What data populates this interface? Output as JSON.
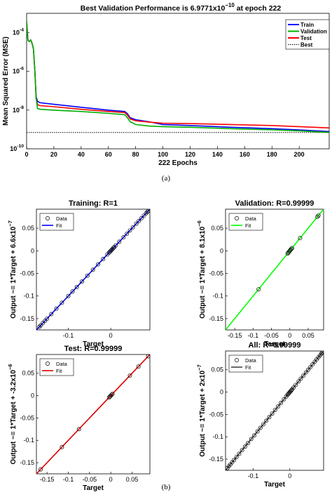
{
  "figure": {
    "caption_a": "(a)",
    "caption_b": "(b)"
  },
  "chart_data": [
    {
      "type": "line",
      "title": "Best Validation Performance is 6.9771x10",
      "title_exp": "−10",
      "title_suffix": " at epoch 222",
      "xlabel": "222 Epochs",
      "ylabel": "Mean Squared Error  (MSE)",
      "yscale": "log",
      "xlim": [
        0,
        222
      ],
      "ylim": [
        1e-10,
        0.001
      ],
      "xticks": [
        0,
        20,
        40,
        60,
        80,
        100,
        120,
        140,
        160,
        180,
        200
      ],
      "yticks": [
        {
          "base": "10",
          "exp": "-4",
          "value": 0.0001
        },
        {
          "base": "10",
          "exp": "-6",
          "value": 1e-06
        },
        {
          "base": "10",
          "exp": "-8",
          "value": 1e-08
        },
        {
          "base": "10",
          "exp": "-10",
          "value": 1e-10
        }
      ],
      "grid": false,
      "legend_position": "top-right",
      "series": [
        {
          "name": "Train",
          "color": "#0000ff",
          "style": "solid",
          "x": [
            0,
            1,
            2,
            3,
            4,
            5,
            6,
            7,
            8,
            10,
            20,
            40,
            60,
            72,
            74,
            76,
            80,
            90,
            100,
            120,
            150,
            180,
            200,
            222
          ],
          "y": [
            0.0004,
            4e-05,
            3.5e-05,
            4.2e-05,
            2.8e-05,
            1.5e-05,
            1.2e-06,
            5e-08,
            2.8e-08,
            2.4e-08,
            2e-08,
            1.4e-08,
            1e-08,
            8.5e-09,
            6.5e-09,
            4e-09,
            3.2e-09,
            2.5e-09,
            1.8e-09,
            1.6e-09,
            1.3e-09,
            1.1e-09,
            9.5e-10,
            7.8e-10
          ]
        },
        {
          "name": "Validation",
          "color": "#00b000",
          "style": "solid",
          "x": [
            0,
            1,
            2,
            3,
            4,
            5,
            6,
            7,
            8,
            10,
            20,
            40,
            60,
            72,
            74,
            76,
            80,
            90,
            100,
            120,
            150,
            180,
            200,
            222
          ],
          "y": [
            0.0004,
            4e-05,
            3.5e-05,
            4.2e-05,
            2.8e-05,
            1.5e-05,
            1.2e-06,
            4e-08,
            1.2e-08,
            1.1e-08,
            1e-08,
            8.5e-09,
            6.8e-09,
            5.8e-09,
            4e-09,
            2.5e-09,
            1.8e-09,
            1.5e-09,
            1.4e-09,
            1.3e-09,
            1.1e-09,
            9.5e-10,
            8.5e-10,
            7e-10
          ]
        },
        {
          "name": "Test",
          "color": "#ff0000",
          "style": "solid",
          "x": [
            0,
            1,
            2,
            3,
            4,
            5,
            6,
            7,
            8,
            10,
            20,
            40,
            60,
            72,
            74,
            76,
            80,
            90,
            100,
            120,
            150,
            180,
            200,
            222
          ],
          "y": [
            0.0004,
            4e-05,
            3.5e-05,
            4.2e-05,
            2.8e-05,
            1.5e-05,
            1.2e-06,
            4e-08,
            1.9e-08,
            1.7e-08,
            1.5e-08,
            1.1e-08,
            8.5e-09,
            7.5e-09,
            5.5e-09,
            3.5e-09,
            2.8e-09,
            2.4e-09,
            2.1e-09,
            2e-09,
            1.8e-09,
            1.6e-09,
            1.4e-09,
            1.2e-09
          ]
        },
        {
          "name": "Best",
          "color": "#000000",
          "style": "dotted",
          "x": [
            0,
            222
          ],
          "y": [
            6.9771e-10,
            6.9771e-10
          ]
        }
      ]
    },
    {
      "type": "scatter",
      "title": "Training: R=1",
      "xlabel": "Target",
      "ylabel": "Output ~= 1*Target + 6.6x10",
      "ylabel_exp": "−7",
      "xlim": [
        -0.175,
        0.092
      ],
      "ylim": [
        -0.175,
        0.092
      ],
      "xticks": [
        {
          "label": "-0.1",
          "value": -0.1
        },
        {
          "label": "0",
          "value": 0
        }
      ],
      "yticks": [
        {
          "label": "0.05",
          "value": 0.05
        },
        {
          "label": "0",
          "value": 0
        },
        {
          "label": "-0.05",
          "value": -0.05
        },
        {
          "label": "-0.1",
          "value": -0.1
        },
        {
          "label": "-0.15",
          "value": -0.15
        }
      ],
      "fit_color": "#0000ff",
      "fit": {
        "slope": 1,
        "intercept": 6.6e-07
      },
      "legend": [
        "Data",
        "Fit"
      ],
      "legend_position": "top-left",
      "points_x": [
        -0.168,
        -0.165,
        -0.16,
        -0.155,
        -0.15,
        -0.14,
        -0.128,
        -0.115,
        -0.1,
        -0.09,
        -0.08,
        -0.068,
        -0.055,
        -0.042,
        -0.03,
        -0.018,
        -0.008,
        -0.004,
        -0.002,
        0,
        0.002,
        0.004,
        0.006,
        0.008,
        0.012,
        0.02,
        0.03,
        0.038,
        0.045,
        0.052,
        0.06,
        0.066,
        0.072,
        0.078,
        0.083,
        0.086,
        0.088
      ]
    },
    {
      "type": "scatter",
      "title": "Validation: R=0.99999",
      "xlabel": "Target",
      "ylabel": "Output ~= 1*Target + 8.1x10",
      "ylabel_exp": "−6",
      "xlim": [
        -0.175,
        0.092
      ],
      "ylim": [
        -0.175,
        0.092
      ],
      "xticks": [
        {
          "label": "-0.15",
          "value": -0.15
        },
        {
          "label": "-0.1",
          "value": -0.1
        },
        {
          "label": "-0.05",
          "value": -0.05
        },
        {
          "label": "0",
          "value": 0
        },
        {
          "label": "0.05",
          "value": 0.05
        }
      ],
      "yticks": [
        {
          "label": "0.05",
          "value": 0.05
        },
        {
          "label": "0",
          "value": 0
        },
        {
          "label": "-0.05",
          "value": -0.05
        },
        {
          "label": "-0.1",
          "value": -0.1
        },
        {
          "label": "-0.15",
          "value": -0.15
        }
      ],
      "fit_color": "#00ff00",
      "fit": {
        "slope": 1,
        "intercept": 8.1e-06
      },
      "legend": [
        "Data",
        "Fit"
      ],
      "legend_position": "top-left",
      "points_x": [
        -0.085,
        -0.006,
        -0.004,
        -0.002,
        0,
        0.002,
        0.004,
        0.006,
        0.028,
        0.075,
        0.078
      ]
    },
    {
      "type": "scatter",
      "title": "Test: R=0.99999",
      "xlabel": "Target",
      "ylabel": "Output ~= 1*Target + -3.2x10",
      "ylabel_exp": "−6",
      "xlim": [
        -0.175,
        0.092
      ],
      "ylim": [
        -0.175,
        0.092
      ],
      "xticks": [
        {
          "label": "-0.15",
          "value": -0.15
        },
        {
          "label": "-0.1",
          "value": -0.1
        },
        {
          "label": "-0.05",
          "value": -0.05
        },
        {
          "label": "0",
          "value": 0
        },
        {
          "label": "0.05",
          "value": 0.05
        }
      ],
      "yticks": [
        {
          "label": "0.05",
          "value": 0.05
        },
        {
          "label": "0",
          "value": 0
        },
        {
          "label": "-0.05",
          "value": -0.05
        },
        {
          "label": "-0.1",
          "value": -0.1
        },
        {
          "label": "-0.15",
          "value": -0.15
        }
      ],
      "fit_color": "#dd0000",
      "fit": {
        "slope": 1,
        "intercept": -3.2e-06
      },
      "legend": [
        "Data",
        "Fit"
      ],
      "legend_position": "top-left",
      "points_x": [
        -0.165,
        -0.115,
        -0.075,
        -0.004,
        -0.002,
        0,
        0.002,
        0.004,
        0.045,
        0.065,
        0.088
      ]
    },
    {
      "type": "scatter",
      "title": "All: R=0.99999",
      "xlabel": "Target",
      "ylabel": "Output ~= 1*Target + 2x10",
      "ylabel_exp": "−7",
      "xlim": [
        -0.175,
        0.092
      ],
      "ylim": [
        -0.175,
        0.092
      ],
      "xticks": [
        {
          "label": "-0.1",
          "value": -0.1
        },
        {
          "label": "0",
          "value": 0
        }
      ],
      "yticks": [
        {
          "label": "0.05",
          "value": 0.05
        },
        {
          "label": "0",
          "value": 0
        },
        {
          "label": "-0.05",
          "value": -0.05
        },
        {
          "label": "-0.1",
          "value": -0.1
        },
        {
          "label": "-0.15",
          "value": -0.15
        }
      ],
      "fit_color": "#444444",
      "fit": {
        "slope": 1,
        "intercept": 2e-07
      },
      "legend": [
        "Data",
        "Fit"
      ],
      "legend_position": "top-left",
      "points_x": [
        -0.17,
        -0.166,
        -0.162,
        -0.157,
        -0.152,
        -0.145,
        -0.138,
        -0.13,
        -0.122,
        -0.114,
        -0.105,
        -0.097,
        -0.088,
        -0.08,
        -0.072,
        -0.064,
        -0.056,
        -0.048,
        -0.04,
        -0.032,
        -0.024,
        -0.016,
        -0.01,
        -0.006,
        -0.004,
        -0.002,
        0,
        0.002,
        0.004,
        0.006,
        0.01,
        0.016,
        0.024,
        0.03,
        0.037,
        0.044,
        0.05,
        0.056,
        0.062,
        0.068,
        0.073,
        0.078,
        0.082,
        0.086,
        0.089
      ]
    }
  ]
}
